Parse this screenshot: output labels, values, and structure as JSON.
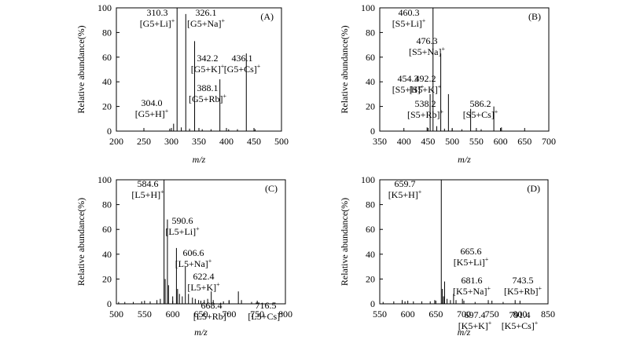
{
  "chart_data": [
    {
      "type": "bar",
      "panel_label": "(A)",
      "xlabel": "m/z",
      "ylabel": "Relative abundance(%)",
      "xlim": [
        200,
        500
      ],
      "ylim": [
        0,
        100
      ],
      "xticks": [
        200,
        250,
        300,
        350,
        400,
        450,
        500
      ],
      "yticks": [
        0,
        20,
        40,
        60,
        80,
        100
      ],
      "peaks": [
        {
          "x": 304.0,
          "y": 6
        },
        {
          "x": 310.3,
          "y": 100
        },
        {
          "x": 326.1,
          "y": 95
        },
        {
          "x": 342.2,
          "y": 73
        },
        {
          "x": 388.1,
          "y": 42
        },
        {
          "x": 436.1,
          "y": 63
        },
        {
          "x": 297.0,
          "y": 2
        },
        {
          "x": 318.0,
          "y": 3
        },
        {
          "x": 333.0,
          "y": 2
        },
        {
          "x": 356.0,
          "y": 1.5
        },
        {
          "x": 372.0,
          "y": 1.5
        },
        {
          "x": 404.0,
          "y": 1.5
        },
        {
          "x": 420.0,
          "y": 1.5
        },
        {
          "x": 452.0,
          "y": 1.5
        }
      ],
      "annotations": [
        {
          "mz": "310.3",
          "ion": "[G5+Li]",
          "charge": "+"
        },
        {
          "mz": "326.1",
          "ion": "[G5+Na]",
          "charge": "+"
        },
        {
          "mz": "342.2",
          "ion": "[G5+K]",
          "charge": "+"
        },
        {
          "mz": "436.1",
          "ion": "[G5+Cs]",
          "charge": "+"
        },
        {
          "mz": "388.1",
          "ion": "[G5+Rb]",
          "charge": "+"
        },
        {
          "mz": "304.0",
          "ion": "[G5+H]",
          "charge": "+"
        }
      ]
    },
    {
      "type": "bar",
      "panel_label": "(B)",
      "xlabel": "m/z",
      "ylabel": "Relative abundance(%)",
      "xlim": [
        350,
        700
      ],
      "ylim": [
        0,
        100
      ],
      "xticks": [
        350,
        400,
        450,
        500,
        550,
        600,
        650,
        700
      ],
      "yticks": [
        0,
        20,
        40,
        60,
        80,
        100
      ],
      "peaks": [
        {
          "x": 454.3,
          "y": 30
        },
        {
          "x": 460.3,
          "y": 100
        },
        {
          "x": 476.3,
          "y": 63
        },
        {
          "x": 492.2,
          "y": 30
        },
        {
          "x": 538.2,
          "y": 18
        },
        {
          "x": 586.2,
          "y": 20
        },
        {
          "x": 448.0,
          "y": 3
        },
        {
          "x": 468.0,
          "y": 4
        },
        {
          "x": 484.0,
          "y": 2
        },
        {
          "x": 500.0,
          "y": 2
        },
        {
          "x": 520.0,
          "y": 1.5
        },
        {
          "x": 560.0,
          "y": 1.5
        },
        {
          "x": 602.0,
          "y": 3
        }
      ],
      "annotations": [
        {
          "mz": "460.3",
          "ion": "[S5+Li]",
          "charge": "+"
        },
        {
          "mz": "476.3",
          "ion": "[S5+Na]",
          "charge": "+"
        },
        {
          "mz": "454.3",
          "ion": "[S5+H]",
          "charge": "+"
        },
        {
          "mz": "492.2",
          "ion": "[S5+K]",
          "charge": "+"
        },
        {
          "mz": "538.2",
          "ion": "[S5+Rb]",
          "charge": "+"
        },
        {
          "mz": "586.2",
          "ion": "[S5+Cs]",
          "charge": "+"
        }
      ]
    },
    {
      "type": "bar",
      "panel_label": "(C)",
      "xlabel": "m/z",
      "ylabel": "Relative abundance(%)",
      "xlim": [
        500,
        800
      ],
      "ylim": [
        0,
        100
      ],
      "xticks": [
        500,
        550,
        600,
        650,
        700,
        750,
        800
      ],
      "yticks": [
        0,
        20,
        40,
        60,
        80,
        100
      ],
      "peaks": [
        {
          "x": 584.6,
          "y": 100
        },
        {
          "x": 590.6,
          "y": 68
        },
        {
          "x": 606.6,
          "y": 45
        },
        {
          "x": 622.4,
          "y": 30
        },
        {
          "x": 668.4,
          "y": 10
        },
        {
          "x": 716.5,
          "y": 10
        },
        {
          "x": 586.6,
          "y": 20
        },
        {
          "x": 592.6,
          "y": 15
        },
        {
          "x": 608.6,
          "y": 12
        },
        {
          "x": 600.0,
          "y": 6
        },
        {
          "x": 612.0,
          "y": 8
        },
        {
          "x": 617.0,
          "y": 6
        },
        {
          "x": 628.0,
          "y": 8
        },
        {
          "x": 635.0,
          "y": 5
        },
        {
          "x": 640.0,
          "y": 4
        },
        {
          "x": 646.0,
          "y": 3
        },
        {
          "x": 656.0,
          "y": 3
        },
        {
          "x": 662.0,
          "y": 4
        },
        {
          "x": 672.0,
          "y": 3
        },
        {
          "x": 690.0,
          "y": 2
        },
        {
          "x": 700.0,
          "y": 3
        },
        {
          "x": 722.0,
          "y": 3
        },
        {
          "x": 504.0,
          "y": 1.5
        },
        {
          "x": 515.0,
          "y": 1.5
        },
        {
          "x": 530.0,
          "y": 1.5
        },
        {
          "x": 545.0,
          "y": 2
        },
        {
          "x": 560.0,
          "y": 2
        },
        {
          "x": 572.0,
          "y": 3
        },
        {
          "x": 578.0,
          "y": 4
        },
        {
          "x": 740.0,
          "y": 1.5
        }
      ],
      "annotations": [
        {
          "mz": "584.6",
          "ion": "[L5+H]",
          "charge": "+"
        },
        {
          "mz": "590.6",
          "ion": "[L5+Li]",
          "charge": "+"
        },
        {
          "mz": "606.6",
          "ion": "[L5+Na]",
          "charge": "+"
        },
        {
          "mz": "622.4",
          "ion": "[L5+K]",
          "charge": "+"
        },
        {
          "mz": "668.4",
          "ion": "[L5+Rb]",
          "charge": "+"
        },
        {
          "mz": "716.5",
          "ion": "[L5+Cs]",
          "charge": "+"
        }
      ]
    },
    {
      "type": "bar",
      "panel_label": "(D)",
      "xlabel": "m/z",
      "ylabel": "Relative abundance(%)",
      "xlim": [
        550,
        850
      ],
      "ylim": [
        0,
        100
      ],
      "xticks": [
        550,
        600,
        650,
        700,
        750,
        800,
        850
      ],
      "yticks": [
        0,
        20,
        40,
        60,
        80,
        100
      ],
      "peaks": [
        {
          "x": 659.7,
          "y": 100
        },
        {
          "x": 665.6,
          "y": 18
        },
        {
          "x": 681.6,
          "y": 8
        },
        {
          "x": 697.4,
          "y": 4
        },
        {
          "x": 743.5,
          "y": 3
        },
        {
          "x": 791.4,
          "y": 3
        },
        {
          "x": 661.7,
          "y": 12
        },
        {
          "x": 663.7,
          "y": 6
        },
        {
          "x": 670.0,
          "y": 4
        },
        {
          "x": 676.0,
          "y": 3
        },
        {
          "x": 686.0,
          "y": 3
        },
        {
          "x": 556.0,
          "y": 1.5
        },
        {
          "x": 575.0,
          "y": 2
        },
        {
          "x": 590.0,
          "y": 3
        },
        {
          "x": 595.0,
          "y": 2
        },
        {
          "x": 610.0,
          "y": 2
        },
        {
          "x": 625.0,
          "y": 2
        },
        {
          "x": 640.0,
          "y": 2
        },
        {
          "x": 648.0,
          "y": 3
        },
        {
          "x": 720.0,
          "y": 1.5
        },
        {
          "x": 770.0,
          "y": 1.5
        }
      ],
      "annotations": [
        {
          "mz": "659.7",
          "ion": "[K5+H]",
          "charge": "+"
        },
        {
          "mz": "665.6",
          "ion": "[K5+Li]",
          "charge": "+"
        },
        {
          "mz": "681.6",
          "ion": "[K5+Na]",
          "charge": "+"
        },
        {
          "mz": "743.5",
          "ion": "[K5+Rb]",
          "charge": "+"
        },
        {
          "mz": "697.4",
          "ion": "[K5+K]",
          "charge": "+"
        },
        {
          "mz": "791.4",
          "ion": "[K5+Cs]",
          "charge": "+"
        }
      ]
    }
  ]
}
